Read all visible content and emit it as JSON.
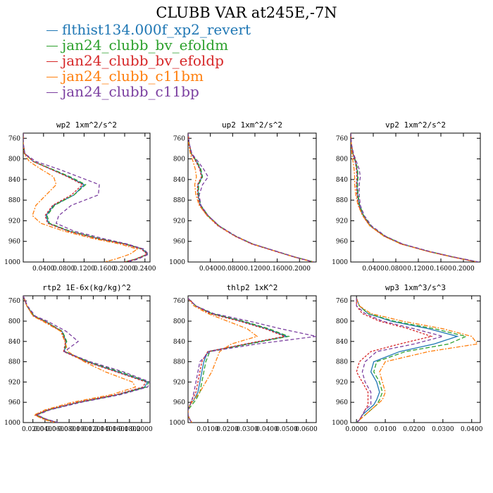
{
  "title": "CLUBB VAR at245E,-7N",
  "series_meta": [
    {
      "name": "flthist134.000f_xp2_revert",
      "color": "#1f77b4",
      "dash": ""
    },
    {
      "name": "jan24_clubb_bv_efoldm",
      "color": "#2ca02c",
      "dash": "6,3"
    },
    {
      "name": "jan24_clubb_bv_efoldp",
      "color": "#d62728",
      "dash": "3,2"
    },
    {
      "name": "jan24_clubb_c11bm",
      "color": "#ff7f0e",
      "dash": "6,2,2,2"
    },
    {
      "name": "jan24_clubb_c11bp",
      "color": "#7b3fa0",
      "dash": "5,3"
    }
  ],
  "chart_data": [
    {
      "type": "line",
      "title": "wp2  1xm^2/s^2",
      "xlim": [
        0,
        0.25
      ],
      "ylim": [
        1000,
        750
      ],
      "xticks": [
        0.04,
        0.08,
        0.12,
        0.16,
        0.2,
        0.24
      ],
      "xticklabels": [
        "0.0400",
        "0.0800",
        "0.1200",
        "0.1600",
        "0.2000",
        "0.2400"
      ],
      "yticks": [
        760,
        800,
        840,
        880,
        920,
        960,
        1000
      ],
      "y": [
        750,
        770,
        790,
        805,
        820,
        835,
        850,
        870,
        890,
        910,
        925,
        940,
        955,
        965,
        975,
        985,
        995,
        1000
      ],
      "series": [
        {
          "values": [
            0.0,
            0.0,
            0.003,
            0.02,
            0.055,
            0.09,
            0.12,
            0.1,
            0.06,
            0.045,
            0.05,
            0.09,
            0.15,
            0.2,
            0.235,
            0.245,
            0.22,
            0.2
          ]
        },
        {
          "values": [
            0.0,
            0.0,
            0.003,
            0.02,
            0.057,
            0.093,
            0.123,
            0.1,
            0.062,
            0.047,
            0.052,
            0.092,
            0.152,
            0.202,
            0.237,
            0.246,
            0.22,
            0.2
          ]
        },
        {
          "values": [
            0.0,
            0.0,
            0.003,
            0.02,
            0.054,
            0.088,
            0.117,
            0.095,
            0.058,
            0.043,
            0.048,
            0.088,
            0.148,
            0.198,
            0.233,
            0.244,
            0.22,
            0.2
          ]
        },
        {
          "values": [
            0.0,
            0.0,
            0.002,
            0.012,
            0.035,
            0.06,
            0.065,
            0.045,
            0.025,
            0.018,
            0.035,
            0.08,
            0.14,
            0.19,
            0.225,
            0.21,
            0.18,
            0.16
          ]
        },
        {
          "values": [
            0.0,
            0.0,
            0.003,
            0.025,
            0.07,
            0.11,
            0.15,
            0.148,
            0.095,
            0.07,
            0.065,
            0.1,
            0.16,
            0.205,
            0.238,
            0.247,
            0.225,
            0.205
          ]
        }
      ]
    },
    {
      "type": "line",
      "title": "up2  1xm^2/s^2",
      "xlim": [
        0,
        0.23
      ],
      "ylim": [
        1000,
        750
      ],
      "xticks": [
        0.04,
        0.08,
        0.12,
        0.16,
        0.2
      ],
      "xticklabels": [
        "0.0400",
        "0.0800",
        "0.1200",
        "0.1600",
        "0.2000"
      ],
      "yticks": [
        760,
        800,
        840,
        880,
        920,
        960,
        1000
      ],
      "y": [
        750,
        770,
        790,
        805,
        820,
        835,
        850,
        870,
        890,
        910,
        930,
        950,
        965,
        980,
        990,
        1000
      ],
      "series": [
        {
          "values": [
            0.0,
            0.002,
            0.006,
            0.015,
            0.022,
            0.025,
            0.018,
            0.018,
            0.022,
            0.035,
            0.055,
            0.085,
            0.115,
            0.16,
            0.19,
            0.225
          ]
        },
        {
          "values": [
            0.0,
            0.002,
            0.006,
            0.016,
            0.023,
            0.026,
            0.019,
            0.019,
            0.023,
            0.036,
            0.056,
            0.086,
            0.116,
            0.161,
            0.191,
            0.226
          ]
        },
        {
          "values": [
            0.0,
            0.002,
            0.006,
            0.014,
            0.021,
            0.024,
            0.017,
            0.017,
            0.021,
            0.034,
            0.054,
            0.084,
            0.114,
            0.159,
            0.189,
            0.224
          ]
        },
        {
          "values": [
            0.0,
            0.001,
            0.004,
            0.009,
            0.013,
            0.015,
            0.012,
            0.014,
            0.02,
            0.034,
            0.055,
            0.085,
            0.115,
            0.16,
            0.19,
            0.225
          ]
        },
        {
          "values": [
            0.0,
            0.002,
            0.007,
            0.018,
            0.028,
            0.036,
            0.026,
            0.02,
            0.023,
            0.036,
            0.056,
            0.086,
            0.116,
            0.161,
            0.191,
            0.226
          ]
        }
      ]
    },
    {
      "type": "line",
      "title": "vp2  1xm^2/s^2",
      "xlim": [
        0,
        0.23
      ],
      "ylim": [
        1000,
        750
      ],
      "xticks": [
        0.04,
        0.08,
        0.12,
        0.16,
        0.2
      ],
      "xticklabels": [
        "0.0400",
        "0.0800",
        "0.1200",
        "0.1600",
        "0.2000"
      ],
      "yticks": [
        760,
        800,
        840,
        880,
        920,
        960,
        1000
      ],
      "y": [
        750,
        770,
        790,
        805,
        820,
        835,
        850,
        870,
        890,
        910,
        930,
        950,
        965,
        980,
        990,
        1000
      ],
      "series": [
        {
          "values": [
            0.0,
            0.001,
            0.004,
            0.008,
            0.011,
            0.012,
            0.011,
            0.012,
            0.015,
            0.022,
            0.035,
            0.06,
            0.09,
            0.14,
            0.18,
            0.225
          ]
        },
        {
          "values": [
            0.0,
            0.001,
            0.004,
            0.009,
            0.012,
            0.013,
            0.012,
            0.013,
            0.016,
            0.023,
            0.036,
            0.061,
            0.091,
            0.141,
            0.181,
            0.226
          ]
        },
        {
          "values": [
            0.0,
            0.001,
            0.004,
            0.008,
            0.01,
            0.011,
            0.01,
            0.011,
            0.014,
            0.021,
            0.034,
            0.059,
            0.089,
            0.139,
            0.179,
            0.224
          ]
        },
        {
          "values": [
            0.0,
            0.001,
            0.002,
            0.004,
            0.006,
            0.007,
            0.007,
            0.009,
            0.013,
            0.021,
            0.034,
            0.059,
            0.089,
            0.139,
            0.179,
            0.224
          ]
        },
        {
          "values": [
            0.0,
            0.001,
            0.005,
            0.01,
            0.015,
            0.017,
            0.015,
            0.015,
            0.017,
            0.024,
            0.037,
            0.062,
            0.092,
            0.142,
            0.182,
            0.227
          ]
        }
      ]
    },
    {
      "type": "line",
      "title": "rtp2  1E-6x(kg/kg)^2",
      "xlim": [
        0.004,
        0.214
      ],
      "ylim": [
        1000,
        750
      ],
      "xticks": [
        0.02,
        0.04,
        0.06,
        0.08,
        0.1,
        0.12,
        0.14,
        0.16,
        0.18,
        0.2
      ],
      "xticklabels": [
        "0.0200",
        "0.0400",
        "0.0600",
        "0.0800",
        "0.1000",
        "0.1200",
        "0.1400",
        "0.1600",
        "0.1800",
        "0.2000"
      ],
      "yticks": [
        760,
        800,
        840,
        880,
        920,
        960,
        1000
      ],
      "y": [
        750,
        770,
        790,
        800,
        820,
        840,
        860,
        880,
        900,
        920,
        930,
        945,
        960,
        975,
        985,
        993,
        1000
      ],
      "series": [
        {
          "values": [
            0.004,
            0.01,
            0.022,
            0.04,
            0.068,
            0.075,
            0.072,
            0.11,
            0.16,
            0.21,
            0.205,
            0.16,
            0.095,
            0.045,
            0.025,
            0.04,
            0.06
          ]
        },
        {
          "values": [
            0.004,
            0.01,
            0.022,
            0.04,
            0.069,
            0.076,
            0.073,
            0.112,
            0.165,
            0.212,
            0.208,
            0.162,
            0.097,
            0.046,
            0.026,
            0.041,
            0.061
          ]
        },
        {
          "values": [
            0.004,
            0.01,
            0.021,
            0.039,
            0.067,
            0.074,
            0.071,
            0.108,
            0.158,
            0.207,
            0.202,
            0.158,
            0.093,
            0.044,
            0.024,
            0.039,
            0.059
          ]
        },
        {
          "values": [
            0.004,
            0.01,
            0.02,
            0.036,
            0.066,
            0.073,
            0.078,
            0.105,
            0.14,
            0.185,
            0.19,
            0.15,
            0.085,
            0.04,
            0.022,
            0.037,
            0.055
          ]
        },
        {
          "values": [
            0.004,
            0.011,
            0.024,
            0.044,
            0.075,
            0.095,
            0.072,
            0.115,
            0.17,
            0.214,
            0.21,
            0.165,
            0.1,
            0.048,
            0.027,
            0.042,
            0.062
          ]
        }
      ]
    },
    {
      "type": "line",
      "title": "thlp2  1xK^2",
      "xlim": [
        0,
        0.065
      ],
      "ylim": [
        1000,
        750
      ],
      "xticks": [
        0.01,
        0.02,
        0.03,
        0.04,
        0.05,
        0.06
      ],
      "xticklabels": [
        "0.0100",
        "0.0200",
        "0.0300",
        "0.0400",
        "0.0500",
        "0.0600"
      ],
      "yticks": [
        760,
        800,
        840,
        880,
        920,
        960,
        1000
      ],
      "y": [
        755,
        770,
        785,
        800,
        815,
        830,
        845,
        860,
        880,
        900,
        920,
        940,
        955,
        965,
        975,
        985,
        995,
        1000
      ],
      "series": [
        {
          "values": [
            0.0,
            0.004,
            0.012,
            0.027,
            0.04,
            0.05,
            0.03,
            0.01,
            0.008,
            0.007,
            0.006,
            0.005,
            0.003,
            0.001,
            0.0,
            0.0,
            0.001,
            0.002
          ]
        },
        {
          "values": [
            0.0,
            0.004,
            0.012,
            0.028,
            0.041,
            0.051,
            0.031,
            0.011,
            0.009,
            0.008,
            0.007,
            0.006,
            0.004,
            0.002,
            0.0,
            0.0,
            0.001,
            0.002
          ]
        },
        {
          "values": [
            0.0,
            0.004,
            0.011,
            0.026,
            0.039,
            0.049,
            0.029,
            0.01,
            0.007,
            0.006,
            0.005,
            0.004,
            0.002,
            0.001,
            0.0,
            0.0,
            0.001,
            0.002
          ]
        },
        {
          "values": [
            0.0,
            0.003,
            0.01,
            0.02,
            0.03,
            0.035,
            0.022,
            0.016,
            0.014,
            0.012,
            0.009,
            0.006,
            0.003,
            0.001,
            0.0,
            0.0,
            0.001,
            0.002
          ]
        },
        {
          "values": [
            0.0,
            0.004,
            0.013,
            0.031,
            0.047,
            0.065,
            0.035,
            0.011,
            0.006,
            0.005,
            0.004,
            0.003,
            0.002,
            0.001,
            0.0,
            0.0,
            0.001,
            0.002
          ]
        }
      ]
    },
    {
      "type": "line",
      "title": "wp3  1xm^3/s^3",
      "xlim": [
        -0.002,
        0.043
      ],
      "ylim": [
        1000,
        750
      ],
      "xticks": [
        0.0,
        0.01,
        0.02,
        0.03,
        0.04
      ],
      "xticklabels": [
        "0.0000",
        "0.0100",
        "0.0200",
        "0.0300",
        "0.0400"
      ],
      "yticks": [
        760,
        800,
        840,
        880,
        920,
        960,
        1000
      ],
      "y": [
        755,
        770,
        785,
        800,
        815,
        830,
        845,
        860,
        880,
        900,
        920,
        940,
        955,
        965,
        975,
        985,
        995,
        1000
      ],
      "series": [
        {
          "values": [
            0.0,
            0.001,
            0.004,
            0.012,
            0.025,
            0.035,
            0.027,
            0.015,
            0.006,
            0.005,
            0.007,
            0.008,
            0.007,
            0.006,
            0.004,
            0.002,
            0.001,
            0.0
          ]
        },
        {
          "values": [
            0.0,
            0.001,
            0.004,
            0.013,
            0.027,
            0.038,
            0.032,
            0.017,
            0.007,
            0.006,
            0.008,
            0.009,
            0.008,
            0.007,
            0.005,
            0.003,
            0.001,
            0.0
          ]
        },
        {
          "values": [
            0.0,
            0.0,
            0.002,
            0.008,
            0.018,
            0.026,
            0.015,
            0.005,
            0.001,
            0.0,
            0.002,
            0.004,
            0.004,
            0.004,
            0.003,
            0.002,
            0.001,
            0.0
          ]
        },
        {
          "values": [
            0.0,
            0.001,
            0.005,
            0.016,
            0.03,
            0.04,
            0.042,
            0.025,
            0.01,
            0.008,
            0.009,
            0.01,
            0.009,
            0.007,
            0.005,
            0.003,
            0.001,
            0.0
          ]
        },
        {
          "values": [
            0.0,
            0.0,
            0.003,
            0.009,
            0.02,
            0.03,
            0.02,
            0.007,
            0.003,
            0.002,
            0.003,
            0.005,
            0.005,
            0.005,
            0.003,
            0.002,
            0.001,
            0.0
          ]
        }
      ]
    }
  ]
}
